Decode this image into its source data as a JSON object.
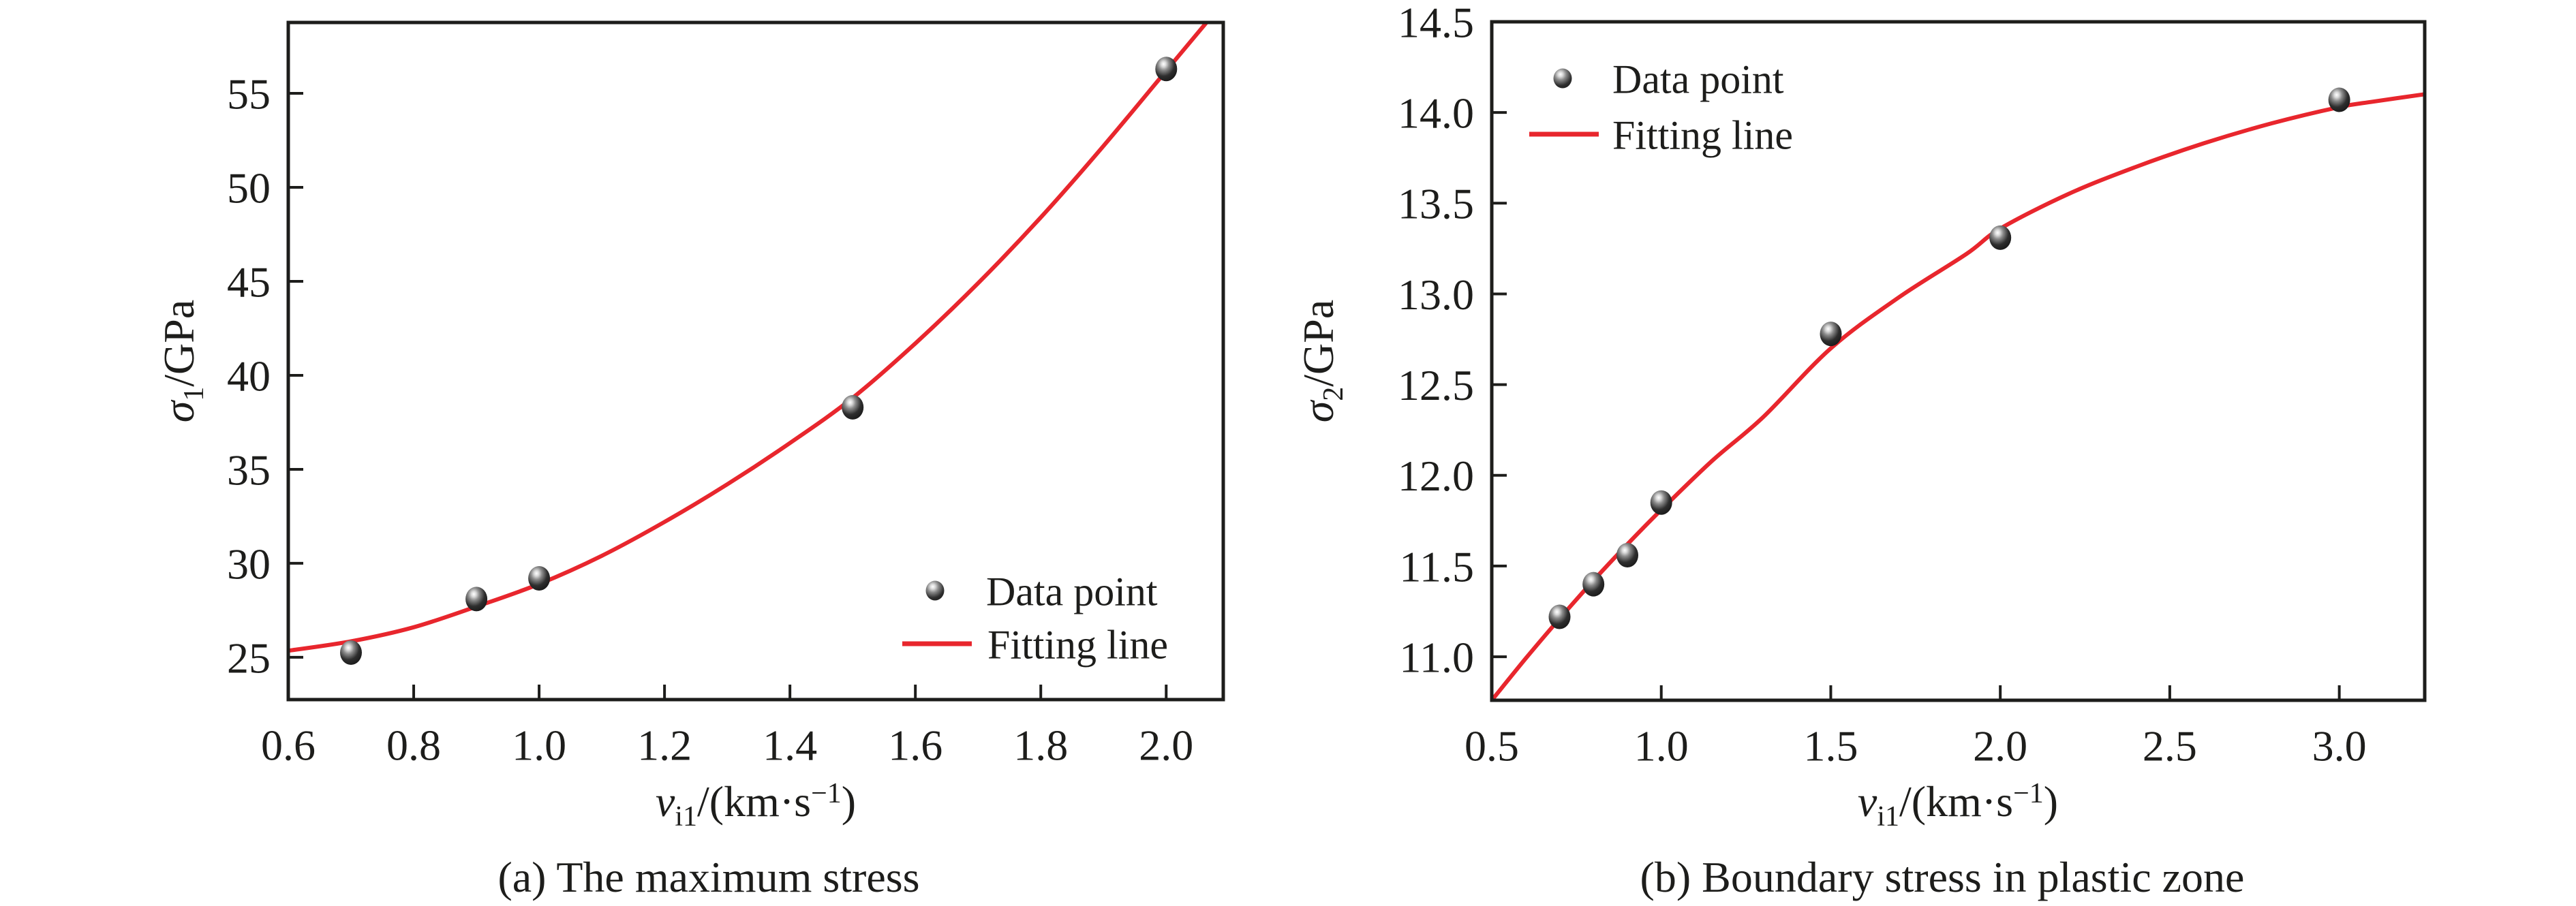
{
  "figure": {
    "background": "#ffffff",
    "ink": "#1d1d1b",
    "fit_line_red": "#e8262d",
    "marker_black": "#141414"
  },
  "chart_data": [
    {
      "type": "scatter",
      "panel": "a",
      "caption": "(a) The maximum stress",
      "xlabel": "v_i1/(km·s−1)",
      "ylabel": "σ_1/GPa",
      "xlabel_parts": {
        "sym": "v",
        "sub": "i1",
        "mid": "/(km·s",
        "sup": "−1",
        "end": ")"
      },
      "ylabel_parts": {
        "sym": "σ",
        "sub": "1",
        "rest": "/GPa"
      },
      "legend": [
        "Data point",
        "Fitting line"
      ],
      "legend_position": "lower right",
      "xlim": [
        0.6,
        2.091
      ],
      "ylim": [
        22.75,
        58.77
      ],
      "xticks": [
        0.6,
        0.8,
        1.0,
        1.2,
        1.4,
        1.6,
        1.8,
        2.0
      ],
      "xtick_labels": [
        "0.6",
        "0.8",
        "1.0",
        "1.2",
        "1.4",
        "1.6",
        "1.8",
        "2.0"
      ],
      "yticks": [
        25,
        30,
        35,
        40,
        45,
        50,
        55
      ],
      "ytick_labels": [
        "25",
        "30",
        "35",
        "40",
        "45",
        "50",
        "55"
      ],
      "grid": false,
      "points": {
        "x": [
          0.7,
          0.9,
          1.0,
          1.5,
          2.0
        ],
        "y": [
          25.25,
          28.1,
          29.2,
          38.3,
          56.3
        ]
      },
      "fit_curve": {
        "x": [
          0.6,
          0.7,
          0.8,
          0.9,
          1.0,
          1.1,
          1.2,
          1.3,
          1.4,
          1.5,
          1.6,
          1.7,
          1.8,
          1.9,
          2.0,
          2.07
        ],
        "y": [
          25.35,
          25.85,
          26.6,
          27.7,
          28.9,
          30.4,
          32.2,
          34.2,
          36.4,
          38.8,
          41.7,
          44.9,
          48.4,
          52.2,
          56.2,
          59.0
        ]
      }
    },
    {
      "type": "scatter",
      "panel": "b",
      "caption": "(b) Boundary stress in plastic zone",
      "xlabel": "v_i1/(km·s−1)",
      "ylabel": "σ_2/GPa",
      "xlabel_parts": {
        "sym": "v",
        "sub": "i1",
        "mid": "/(km·s",
        "sup": "−1",
        "end": ")"
      },
      "ylabel_parts": {
        "sym": "σ",
        "sub": "2",
        "rest": "/GPa"
      },
      "legend": [
        "Data point",
        "Fitting line"
      ],
      "legend_position": "upper left",
      "xlim": [
        0.5,
        3.252
      ],
      "ylim": [
        10.76,
        14.5
      ],
      "xticks": [
        0.5,
        1.0,
        1.5,
        2.0,
        2.5,
        3.0
      ],
      "xtick_labels": [
        "0.5",
        "1.0",
        "1.5",
        "2.0",
        "2.5",
        "3.0"
      ],
      "yticks": [
        11.0,
        11.5,
        12.0,
        12.5,
        13.0,
        13.5,
        14.0,
        14.5
      ],
      "ytick_labels": [
        "11.0",
        "11.5",
        "12.0",
        "12.5",
        "13.0",
        "13.5",
        "14.0",
        "14.5"
      ],
      "grid": false,
      "points": {
        "x": [
          0.7,
          0.8,
          0.9,
          1.0,
          1.5,
          2.0,
          3.0
        ],
        "y": [
          11.22,
          11.4,
          11.56,
          11.85,
          12.78,
          13.31,
          14.07
        ]
      },
      "fit_curve": {
        "x": [
          0.5,
          0.6,
          0.7,
          0.8,
          0.9,
          1.0,
          1.15,
          1.3,
          1.5,
          1.7,
          1.9,
          2.0,
          2.2,
          2.4,
          2.6,
          2.8,
          3.0,
          3.1,
          3.25
        ],
        "y": [
          10.76,
          10.99,
          11.21,
          11.42,
          11.62,
          11.81,
          12.08,
          12.32,
          12.7,
          12.98,
          13.22,
          13.36,
          13.55,
          13.7,
          13.83,
          13.94,
          14.03,
          14.06,
          14.1
        ]
      }
    }
  ]
}
